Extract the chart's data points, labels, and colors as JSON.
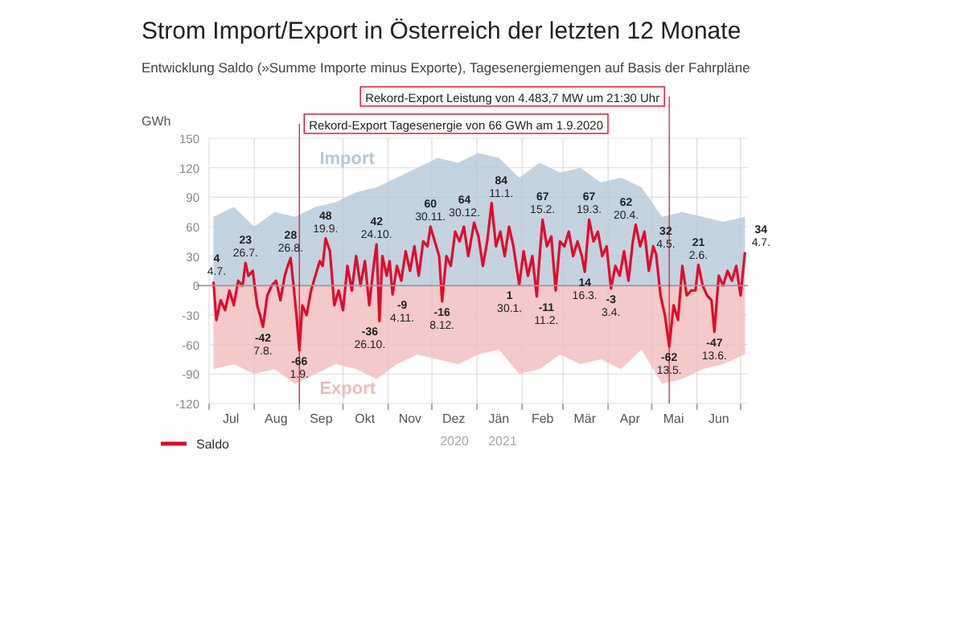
{
  "chart_data": {
    "type": "line",
    "title": "Strom Import/Export in Österreich der letzten 12 Monate",
    "subtitle": "Entwicklung Saldo (»Summe Importe minus Exporte), Tagesenergiemengen auf Basis der Fahrpläne",
    "ylabel": "GWh",
    "xlim": [
      "2020-07-01",
      "2021-07-06"
    ],
    "xticks": [
      {
        "value": "2020-07-01",
        "label": null
      },
      {
        "value": "2020-07-16",
        "label": "Jul"
      },
      {
        "value": "2020-08-01",
        "label": null
      },
      {
        "value": "2020-08-16",
        "label": "Aug"
      },
      {
        "value": "2020-09-01",
        "label": null
      },
      {
        "value": "2020-09-16",
        "label": "Sep"
      },
      {
        "value": "2020-10-01",
        "label": null
      },
      {
        "value": "2020-10-16",
        "label": "Okt"
      },
      {
        "value": "2020-11-01",
        "label": null
      },
      {
        "value": "2020-11-16",
        "label": "Nov"
      },
      {
        "value": "2020-12-01",
        "label": null
      },
      {
        "value": "2020-12-16",
        "label": "Dez"
      },
      {
        "value": "2021-01-01",
        "label": null
      },
      {
        "value": "2021-01-16",
        "label": "Jän"
      },
      {
        "value": "2021-02-01",
        "label": null
      },
      {
        "value": "2021-02-15",
        "label": "Feb"
      },
      {
        "value": "2021-03-01",
        "label": null
      },
      {
        "value": "2021-03-16",
        "label": "Mär"
      },
      {
        "value": "2021-04-01",
        "label": null
      },
      {
        "value": "2021-04-16",
        "label": "Apr"
      },
      {
        "value": "2021-05-01",
        "label": null
      },
      {
        "value": "2021-05-16",
        "label": "Mai"
      },
      {
        "value": "2021-06-01",
        "label": null
      },
      {
        "value": "2021-06-16",
        "label": "Jun"
      },
      {
        "value": "2021-07-01",
        "label": null
      }
    ],
    "ylim": [
      -120,
      150
    ],
    "yticks": [
      -120,
      -90,
      -60,
      -30,
      0,
      30,
      60,
      90,
      120,
      150
    ],
    "grid": true,
    "legend": "bottom left",
    "series": [
      {
        "name": "Import",
        "type": "area",
        "color": "#b4c8d8",
        "x": [
          "2020-07-04",
          "2020-07-18",
          "2020-08-01",
          "2020-08-15",
          "2020-08-29",
          "2020-09-12",
          "2020-09-26",
          "2020-10-10",
          "2020-10-24",
          "2020-11-07",
          "2020-11-21",
          "2020-12-05",
          "2020-12-19",
          "2021-01-02",
          "2021-01-16",
          "2021-01-30",
          "2021-02-13",
          "2021-02-27",
          "2021-03-13",
          "2021-03-27",
          "2021-04-10",
          "2021-04-24",
          "2021-05-08",
          "2021-05-22",
          "2021-06-05",
          "2021-06-19",
          "2021-07-04"
        ],
        "values": [
          70,
          80,
          60,
          75,
          70,
          80,
          85,
          95,
          100,
          110,
          120,
          130,
          125,
          135,
          130,
          110,
          125,
          115,
          120,
          105,
          110,
          100,
          70,
          75,
          70,
          65,
          70
        ]
      },
      {
        "name": "Export",
        "type": "area",
        "color": "#f0bcbc",
        "x": [
          "2020-07-04",
          "2020-07-18",
          "2020-08-01",
          "2020-08-15",
          "2020-08-29",
          "2020-09-12",
          "2020-09-26",
          "2020-10-10",
          "2020-10-24",
          "2020-11-07",
          "2020-11-21",
          "2020-12-05",
          "2020-12-19",
          "2021-01-02",
          "2021-01-16",
          "2021-01-30",
          "2021-02-13",
          "2021-02-27",
          "2021-03-13",
          "2021-03-27",
          "2021-04-10",
          "2021-04-24",
          "2021-05-08",
          "2021-05-22",
          "2021-06-05",
          "2021-06-19",
          "2021-07-04"
        ],
        "values": [
          -85,
          -80,
          -90,
          -85,
          -100,
          -90,
          -80,
          -85,
          -95,
          -80,
          -70,
          -75,
          -80,
          -70,
          -65,
          -90,
          -85,
          -70,
          -80,
          -75,
          -85,
          -65,
          -100,
          -95,
          -85,
          -80,
          -70
        ]
      },
      {
        "name": "Saldo",
        "color": "#e30a2b",
        "x": [
          "2020-07-04",
          "2020-07-06",
          "2020-07-09",
          "2020-07-12",
          "2020-07-15",
          "2020-07-18",
          "2020-07-21",
          "2020-07-24",
          "2020-07-26",
          "2020-07-28",
          "2020-07-31",
          "2020-08-03",
          "2020-08-05",
          "2020-08-07",
          "2020-08-10",
          "2020-08-13",
          "2020-08-16",
          "2020-08-19",
          "2020-08-22",
          "2020-08-24",
          "2020-08-26",
          "2020-08-28",
          "2020-08-30",
          "2020-09-01",
          "2020-09-03",
          "2020-09-06",
          "2020-09-09",
          "2020-09-12",
          "2020-09-15",
          "2020-09-17",
          "2020-09-19",
          "2020-09-22",
          "2020-09-25",
          "2020-09-28",
          "2020-10-01",
          "2020-10-04",
          "2020-10-07",
          "2020-10-10",
          "2020-10-13",
          "2020-10-16",
          "2020-10-19",
          "2020-10-22",
          "2020-10-24",
          "2020-10-26",
          "2020-10-28",
          "2020-10-31",
          "2020-11-02",
          "2020-11-04",
          "2020-11-07",
          "2020-11-10",
          "2020-11-13",
          "2020-11-16",
          "2020-11-19",
          "2020-11-22",
          "2020-11-25",
          "2020-11-28",
          "2020-11-30",
          "2020-12-03",
          "2020-12-06",
          "2020-12-08",
          "2020-12-11",
          "2020-12-14",
          "2020-12-17",
          "2020-12-20",
          "2020-12-23",
          "2020-12-26",
          "2020-12-30",
          "2021-01-02",
          "2021-01-05",
          "2021-01-08",
          "2021-01-11",
          "2021-01-14",
          "2021-01-17",
          "2021-01-20",
          "2021-01-23",
          "2021-01-26",
          "2021-01-28",
          "2021-01-30",
          "2021-02-02",
          "2021-02-05",
          "2021-02-08",
          "2021-02-11",
          "2021-02-13",
          "2021-02-15",
          "2021-02-18",
          "2021-02-21",
          "2021-02-24",
          "2021-02-27",
          "2021-03-02",
          "2021-03-05",
          "2021-03-08",
          "2021-03-11",
          "2021-03-14",
          "2021-03-16",
          "2021-03-19",
          "2021-03-22",
          "2021-03-25",
          "2021-03-28",
          "2021-03-31",
          "2021-04-03",
          "2021-04-06",
          "2021-04-09",
          "2021-04-12",
          "2021-04-15",
          "2021-04-18",
          "2021-04-20",
          "2021-04-23",
          "2021-04-26",
          "2021-04-29",
          "2021-05-02",
          "2021-05-04",
          "2021-05-07",
          "2021-05-10",
          "2021-05-13",
          "2021-05-16",
          "2021-05-19",
          "2021-05-22",
          "2021-05-25",
          "2021-05-28",
          "2021-05-31",
          "2021-06-02",
          "2021-06-05",
          "2021-06-08",
          "2021-06-11",
          "2021-06-13",
          "2021-06-16",
          "2021-06-19",
          "2021-06-22",
          "2021-06-25",
          "2021-06-28",
          "2021-07-01",
          "2021-07-04"
        ],
        "values": [
          4,
          -35,
          -15,
          -25,
          -5,
          -20,
          5,
          0,
          23,
          10,
          15,
          -20,
          -30,
          -42,
          -10,
          0,
          5,
          -15,
          10,
          20,
          28,
          0,
          -30,
          -66,
          -20,
          -30,
          -5,
          10,
          25,
          20,
          48,
          35,
          -20,
          -5,
          -25,
          20,
          -5,
          30,
          0,
          25,
          -20,
          20,
          42,
          -36,
          30,
          10,
          25,
          -9,
          20,
          5,
          35,
          15,
          40,
          10,
          45,
          40,
          60,
          45,
          30,
          -16,
          30,
          20,
          55,
          45,
          60,
          30,
          64,
          50,
          20,
          45,
          84,
          40,
          55,
          30,
          60,
          40,
          20,
          1,
          35,
          10,
          30,
          -11,
          30,
          67,
          40,
          50,
          -5,
          45,
          40,
          55,
          30,
          45,
          30,
          14,
          67,
          45,
          55,
          30,
          40,
          -3,
          20,
          10,
          35,
          5,
          45,
          62,
          40,
          55,
          15,
          40,
          32,
          -10,
          -30,
          -62,
          -20,
          -35,
          20,
          -10,
          -5,
          -5,
          21,
          0,
          -10,
          -15,
          -47,
          10,
          0,
          15,
          5,
          20,
          -10,
          34
        ]
      }
    ],
    "annotations": [
      {
        "text": "4\n4.7.",
        "x": "2020-07-04",
        "y": 4
      },
      {
        "text": "23\n26.7.",
        "x": "2020-07-26",
        "y": 23
      },
      {
        "text": "-42\n7.8.",
        "x": "2020-08-07",
        "y": -42
      },
      {
        "text": "28\n26.8.",
        "x": "2020-08-26",
        "y": 28
      },
      {
        "text": "-66\n1.9.",
        "x": "2020-09-01",
        "y": -66
      },
      {
        "text": "48\n19.9.",
        "x": "2020-09-19",
        "y": 48
      },
      {
        "text": "42\n24.10.",
        "x": "2020-10-24",
        "y": 42
      },
      {
        "text": "-36\n26.10.",
        "x": "2020-10-26",
        "y": -36
      },
      {
        "text": "-9\n4.11.",
        "x": "2020-11-04",
        "y": -9
      },
      {
        "text": "60\n30.11.",
        "x": "2020-11-30",
        "y": 60
      },
      {
        "text": "-16\n8.12.",
        "x": "2020-12-08",
        "y": -16
      },
      {
        "text": "64\n30.12.",
        "x": "2020-12-30",
        "y": 64
      },
      {
        "text": "84\n11.1.",
        "x": "2021-01-11",
        "y": 84
      },
      {
        "text": "1\n30.1.",
        "x": "2021-01-30",
        "y": 1
      },
      {
        "text": "-11\n11.2.",
        "x": "2021-02-11",
        "y": -11
      },
      {
        "text": "67\n15.2.",
        "x": "2021-02-15",
        "y": 67
      },
      {
        "text": "14\n16.3.",
        "x": "2021-03-16",
        "y": 14
      },
      {
        "text": "67\n19.3.",
        "x": "2021-03-19",
        "y": 67
      },
      {
        "text": "-3\n3.4.",
        "x": "2021-04-03",
        "y": -3
      },
      {
        "text": "62\n20.4.",
        "x": "2021-04-20",
        "y": 62
      },
      {
        "text": "32\n4.5.",
        "x": "2021-05-04",
        "y": 32
      },
      {
        "text": "-62\n13.5.",
        "x": "2021-05-13",
        "y": -62
      },
      {
        "text": "21\n2.6.",
        "x": "2021-06-02",
        "y": 21
      },
      {
        "text": "-47\n13.6.",
        "x": "2021-06-13",
        "y": -47
      },
      {
        "text": "34\n4.7.",
        "x": "2021-07-04",
        "y": 34
      },
      "2020",
      "2021"
    ],
    "ref_lines": [
      {
        "axis": "x",
        "value": "2021-05-13",
        "label": "Rekord-Export Leistung von 4.483,7 MW um 21:30 Uhr",
        "color": "#e30a2b"
      },
      {
        "axis": "x",
        "value": "2020-09-01",
        "label": "Rekord-Export Tagesenergie von 66 GWh am 1.9.2020",
        "color": "#e30a2b"
      }
    ]
  }
}
